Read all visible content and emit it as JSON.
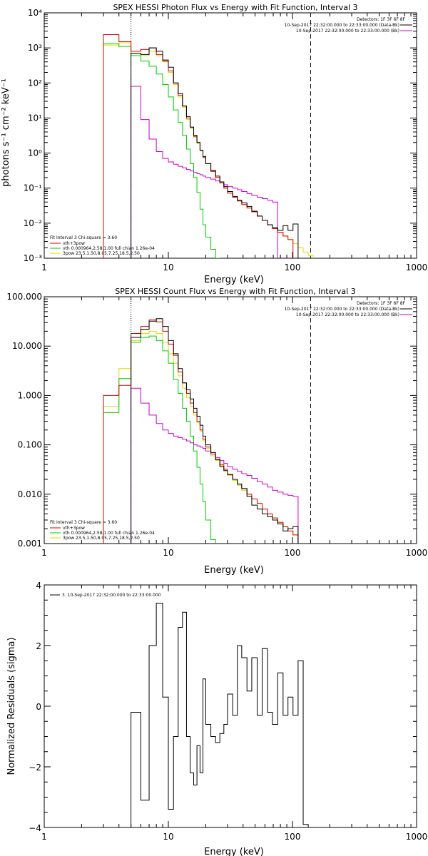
{
  "chart_data": [
    {
      "type": "line",
      "title": "SPEX HESSI Photon Flux vs Energy with Fit Function, Interval 3",
      "xlabel": "Energy (keV)",
      "ylabel": "photons s⁻¹ cm⁻² keV⁻¹",
      "xscale": "log",
      "yscale": "log",
      "xlim": [
        1,
        1000
      ],
      "ylim": [
        0.001,
        10000
      ],
      "xticks": [
        "1",
        "10",
        "100",
        "1000"
      ],
      "yticks": [
        "10⁻³",
        "10⁻²",
        "10⁻¹",
        "10⁰",
        "10¹",
        "10²",
        "10³",
        "10⁴"
      ],
      "legend_tr": [
        "Detectors: 1F 3F 6F 8F",
        "10-Sep-2017 22:32:00.000 to 22:33:00.000 (Data-Bk)",
        "10-Sep-2017 22:32:00.000 to 22:33:00.000 (Bk)"
      ],
      "legend_bl": [
        "Fit Interval 3   Chi-square = 3.60",
        "vth+3pow",
        "vth 0.000964,2.58,1.00   full chian 1.26e-04",
        "3pow 23.5,1.50,8.05,7.25,18.5,2.50"
      ],
      "vlines": [
        5,
        140
      ],
      "edges": [
        3,
        4,
        5,
        6,
        7,
        8,
        9,
        10,
        11,
        12,
        13,
        14,
        15,
        16,
        17,
        18,
        19,
        20,
        22,
        24,
        26,
        28,
        30,
        33,
        36,
        39,
        43,
        47,
        52,
        57,
        63,
        69,
        76,
        84,
        92,
        101,
        111,
        122,
        134,
        147,
        161,
        177,
        195,
        214,
        235,
        258,
        284
      ],
      "series": [
        {
          "name": "Data-Bk",
          "color": "#000000",
          "start": 5,
          "values": [
            700,
            650,
            1000,
            800,
            450,
            280,
            100,
            50,
            22,
            11,
            5.5,
            3.2,
            2.0,
            1.2,
            0.8,
            0.5,
            0.32,
            0.22,
            0.15,
            0.11,
            0.08,
            0.058,
            0.045,
            0.038,
            0.03,
            0.022,
            0.016,
            0.012,
            0.009,
            0.0075,
            0.0062,
            0.0085,
            0.0062,
            0.0095
          ]
        },
        {
          "name": "Bk",
          "color": "#cc00cc",
          "start": 5,
          "values": [
            80,
            9,
            2.5,
            1.1,
            0.7,
            0.56,
            0.48,
            0.42,
            0.38,
            0.34,
            0.31,
            0.28,
            0.26,
            0.24,
            0.22,
            0.2,
            0.18,
            0.16,
            0.14,
            0.125,
            0.11,
            0.1,
            0.09,
            0.08,
            0.07,
            0.062,
            0.055,
            0.05,
            0.045,
            0.04
          ]
        },
        {
          "name": "vth+3pow",
          "color": "#dd0000",
          "start": 3,
          "values": [
            2400,
            1500,
            800,
            900,
            1000,
            650,
            420,
            220,
            100,
            45,
            22,
            10,
            5.5,
            3,
            2,
            1.2,
            0.75,
            0.5,
            0.3,
            0.2,
            0.14,
            0.1,
            0.072,
            0.055,
            0.043,
            0.034,
            0.027,
            0.021,
            0.016,
            0.012,
            0.009,
            0.007,
            0.0055,
            0.0043,
            0.0034
          ]
        },
        {
          "name": "vth",
          "color": "#00cc00",
          "start": 3,
          "values": [
            1300,
            1100,
            600,
            420,
            300,
            180,
            90,
            40,
            17,
            7.5,
            3.2,
            1.3,
            0.5,
            0.2,
            0.075,
            0.025,
            0.009,
            0.004,
            0.0018,
            0.001,
            0.0006
          ]
        },
        {
          "name": "3pow",
          "color": "#dddd00",
          "start": 3,
          "values": [
            1200,
            1400,
            700,
            600,
            800,
            600,
            400,
            200,
            90,
            40,
            20,
            9,
            5,
            2.8,
            1.9,
            1.15,
            0.75,
            0.5,
            0.3,
            0.2,
            0.14,
            0.1,
            0.072,
            0.055,
            0.043,
            0.034,
            0.027,
            0.021,
            0.016,
            0.012,
            0.009,
            0.007,
            0.0055,
            0.0043,
            0.0034,
            0.0026,
            0.002,
            0.0015,
            0.0012,
            0.00095
          ]
        }
      ]
    },
    {
      "type": "line",
      "title": "SPEX HESSI Count Flux vs Energy with Fit Function, Interval 3",
      "xlabel": "Energy (keV)",
      "ylabel": "",
      "xscale": "log",
      "yscale": "log",
      "xlim": [
        1,
        1000
      ],
      "ylim": [
        0.001,
        100
      ],
      "xticks": [
        "1",
        "10",
        "100",
        "1000"
      ],
      "yticks": [
        "0.001",
        "0.010",
        "0.100",
        "1.000",
        "10.000",
        "100.000"
      ],
      "legend_tr": [
        "Detectors: 1F 3F 6F 8F",
        "10-Sep-2017 22:32:00.000 to 22:33:00.000 (Data-Bk)",
        "10-Sep-2017 22:32:00.000 to 22:33:00.000 (Bk)"
      ],
      "legend_bl": [
        "Fit Interval 3   Chi-square = 3.60",
        "vth+3pow",
        "vth 0.000964,2.58,1.00   full chian 1.26e-04",
        "3pow 23.5,1.50,8.05,7.25,18.5,2.50"
      ],
      "vlines": [
        5,
        140
      ],
      "edges": [
        3,
        4,
        5,
        6,
        7,
        8,
        9,
        10,
        11,
        12,
        13,
        14,
        15,
        16,
        17,
        18,
        19,
        20,
        22,
        24,
        26,
        28,
        30,
        33,
        36,
        39,
        43,
        47,
        52,
        57,
        63,
        69,
        76,
        84,
        92,
        101,
        111,
        122,
        134,
        147
      ],
      "series": [
        {
          "name": "Data-Bk",
          "color": "#000000",
          "start": 5,
          "values": [
            15,
            22,
            32,
            36,
            25,
            13,
            7,
            3.5,
            1.8,
            1.3,
            0.85,
            0.55,
            0.38,
            0.25,
            0.15,
            0.1,
            0.07,
            0.05,
            0.036,
            0.03,
            0.025,
            0.02,
            0.016,
            0.013,
            0.009,
            0.006,
            0.005,
            0.004,
            0.0035,
            0.003,
            0.0025,
            0.0018,
            0.002,
            0.0022
          ]
        },
        {
          "name": "Bk",
          "color": "#cc00cc",
          "start": 5,
          "values": [
            1.4,
            0.7,
            0.4,
            0.27,
            0.2,
            0.17,
            0.15,
            0.14,
            0.13,
            0.12,
            0.11,
            0.1,
            0.095,
            0.09,
            0.085,
            0.075,
            0.065,
            0.055,
            0.048,
            0.042,
            0.036,
            0.032,
            0.029,
            0.026,
            0.024,
            0.021,
            0.018,
            0.016,
            0.014,
            0.012,
            0.011,
            0.01,
            0.0095,
            0.009
          ]
        },
        {
          "name": "vth+3pow",
          "color": "#dd0000",
          "start": 3,
          "values": [
            1.0,
            1.6,
            18,
            25,
            34,
            31,
            20,
            11,
            6.5,
            3.0,
            1.8,
            1.1,
            0.7,
            0.45,
            0.3,
            0.2,
            0.13,
            0.09,
            0.065,
            0.05,
            0.04,
            0.032,
            0.025,
            0.02,
            0.016,
            0.013,
            0.01,
            0.008,
            0.0065,
            0.005,
            0.004,
            0.0033,
            0.0027,
            0.0022,
            0.0018,
            0.0015
          ]
        },
        {
          "name": "vth",
          "color": "#00cc00",
          "start": 3,
          "values": [
            0.45,
            2.2,
            12,
            15,
            16,
            13,
            8,
            4.5,
            2.1,
            1.1,
            0.55,
            0.3,
            0.15,
            0.075,
            0.035,
            0.016,
            0.007,
            0.003,
            0.0012,
            0.0005
          ]
        },
        {
          "name": "3pow",
          "color": "#dddd00",
          "start": 3,
          "values": [
            0.6,
            3.5,
            13,
            18,
            20,
            18,
            12,
            7,
            4.5,
            2.5,
            1.4,
            0.9,
            0.6,
            0.4,
            0.28,
            0.19,
            0.12,
            0.085,
            0.06,
            0.048,
            0.038,
            0.03,
            0.024,
            0.019,
            0.015,
            0.012,
            0.01,
            0.008,
            0.0065,
            0.005,
            0.004,
            0.0033,
            0.0027,
            0.0022,
            0.0018,
            0.0015
          ]
        }
      ]
    },
    {
      "type": "line",
      "title": "",
      "xlabel": "Energy (keV)",
      "ylabel": "Normalized Residuals (sigma)",
      "xscale": "log",
      "yscale": "linear",
      "xlim": [
        1,
        1000
      ],
      "ylim": [
        -4,
        4
      ],
      "xticks": [
        "1",
        "10",
        "100",
        "1000"
      ],
      "yticks": [
        "−4",
        "−2",
        "0",
        "2",
        "4"
      ],
      "legend_tl": [
        "3. 10-Sep-2017 22:32:00.000 to 22:33:00.000"
      ],
      "edges": [
        5,
        6,
        7,
        8,
        9,
        10,
        11,
        12,
        13,
        14,
        15,
        16,
        17,
        18,
        19,
        20,
        22,
        24,
        26,
        28,
        30,
        33,
        36,
        39,
        43,
        47,
        52,
        57,
        63,
        69,
        76,
        84,
        92,
        101,
        111,
        122,
        134,
        140
      ],
      "series": [
        {
          "name": "residuals",
          "color": "#000000",
          "values": [
            -0.2,
            -3.1,
            2.0,
            3.4,
            0.3,
            -3.4,
            -1.0,
            2.6,
            3.1,
            -1.0,
            -2.2,
            -2.6,
            -1.3,
            -2.2,
            0.9,
            -0.6,
            -1.0,
            -1.2,
            -0.9,
            -0.6,
            0.4,
            -0.3,
            2.0,
            1.6,
            0.5,
            1.6,
            -0.3,
            1.9,
            -0.2,
            -0.6,
            1.1,
            -0.3,
            0.3,
            -0.3,
            1.5,
            -3.9,
            -4.0
          ]
        }
      ]
    }
  ]
}
